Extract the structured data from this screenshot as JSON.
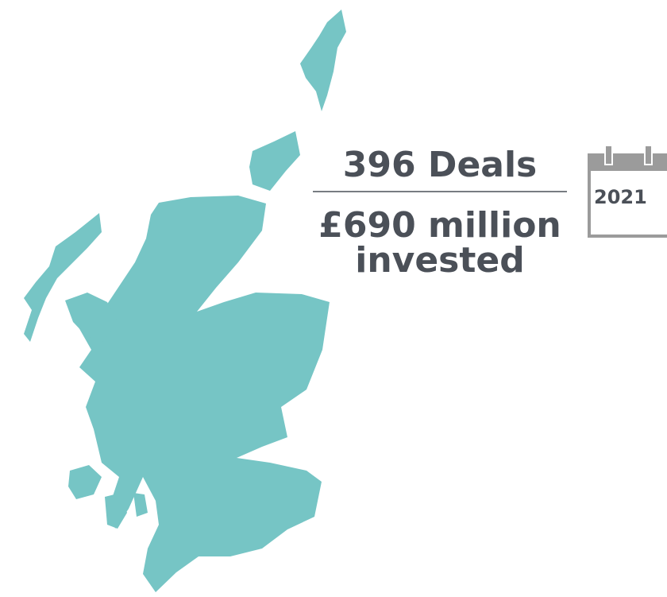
{
  "headline": "396 Deals",
  "amount": "£690 million invested",
  "year": "2021"
}
